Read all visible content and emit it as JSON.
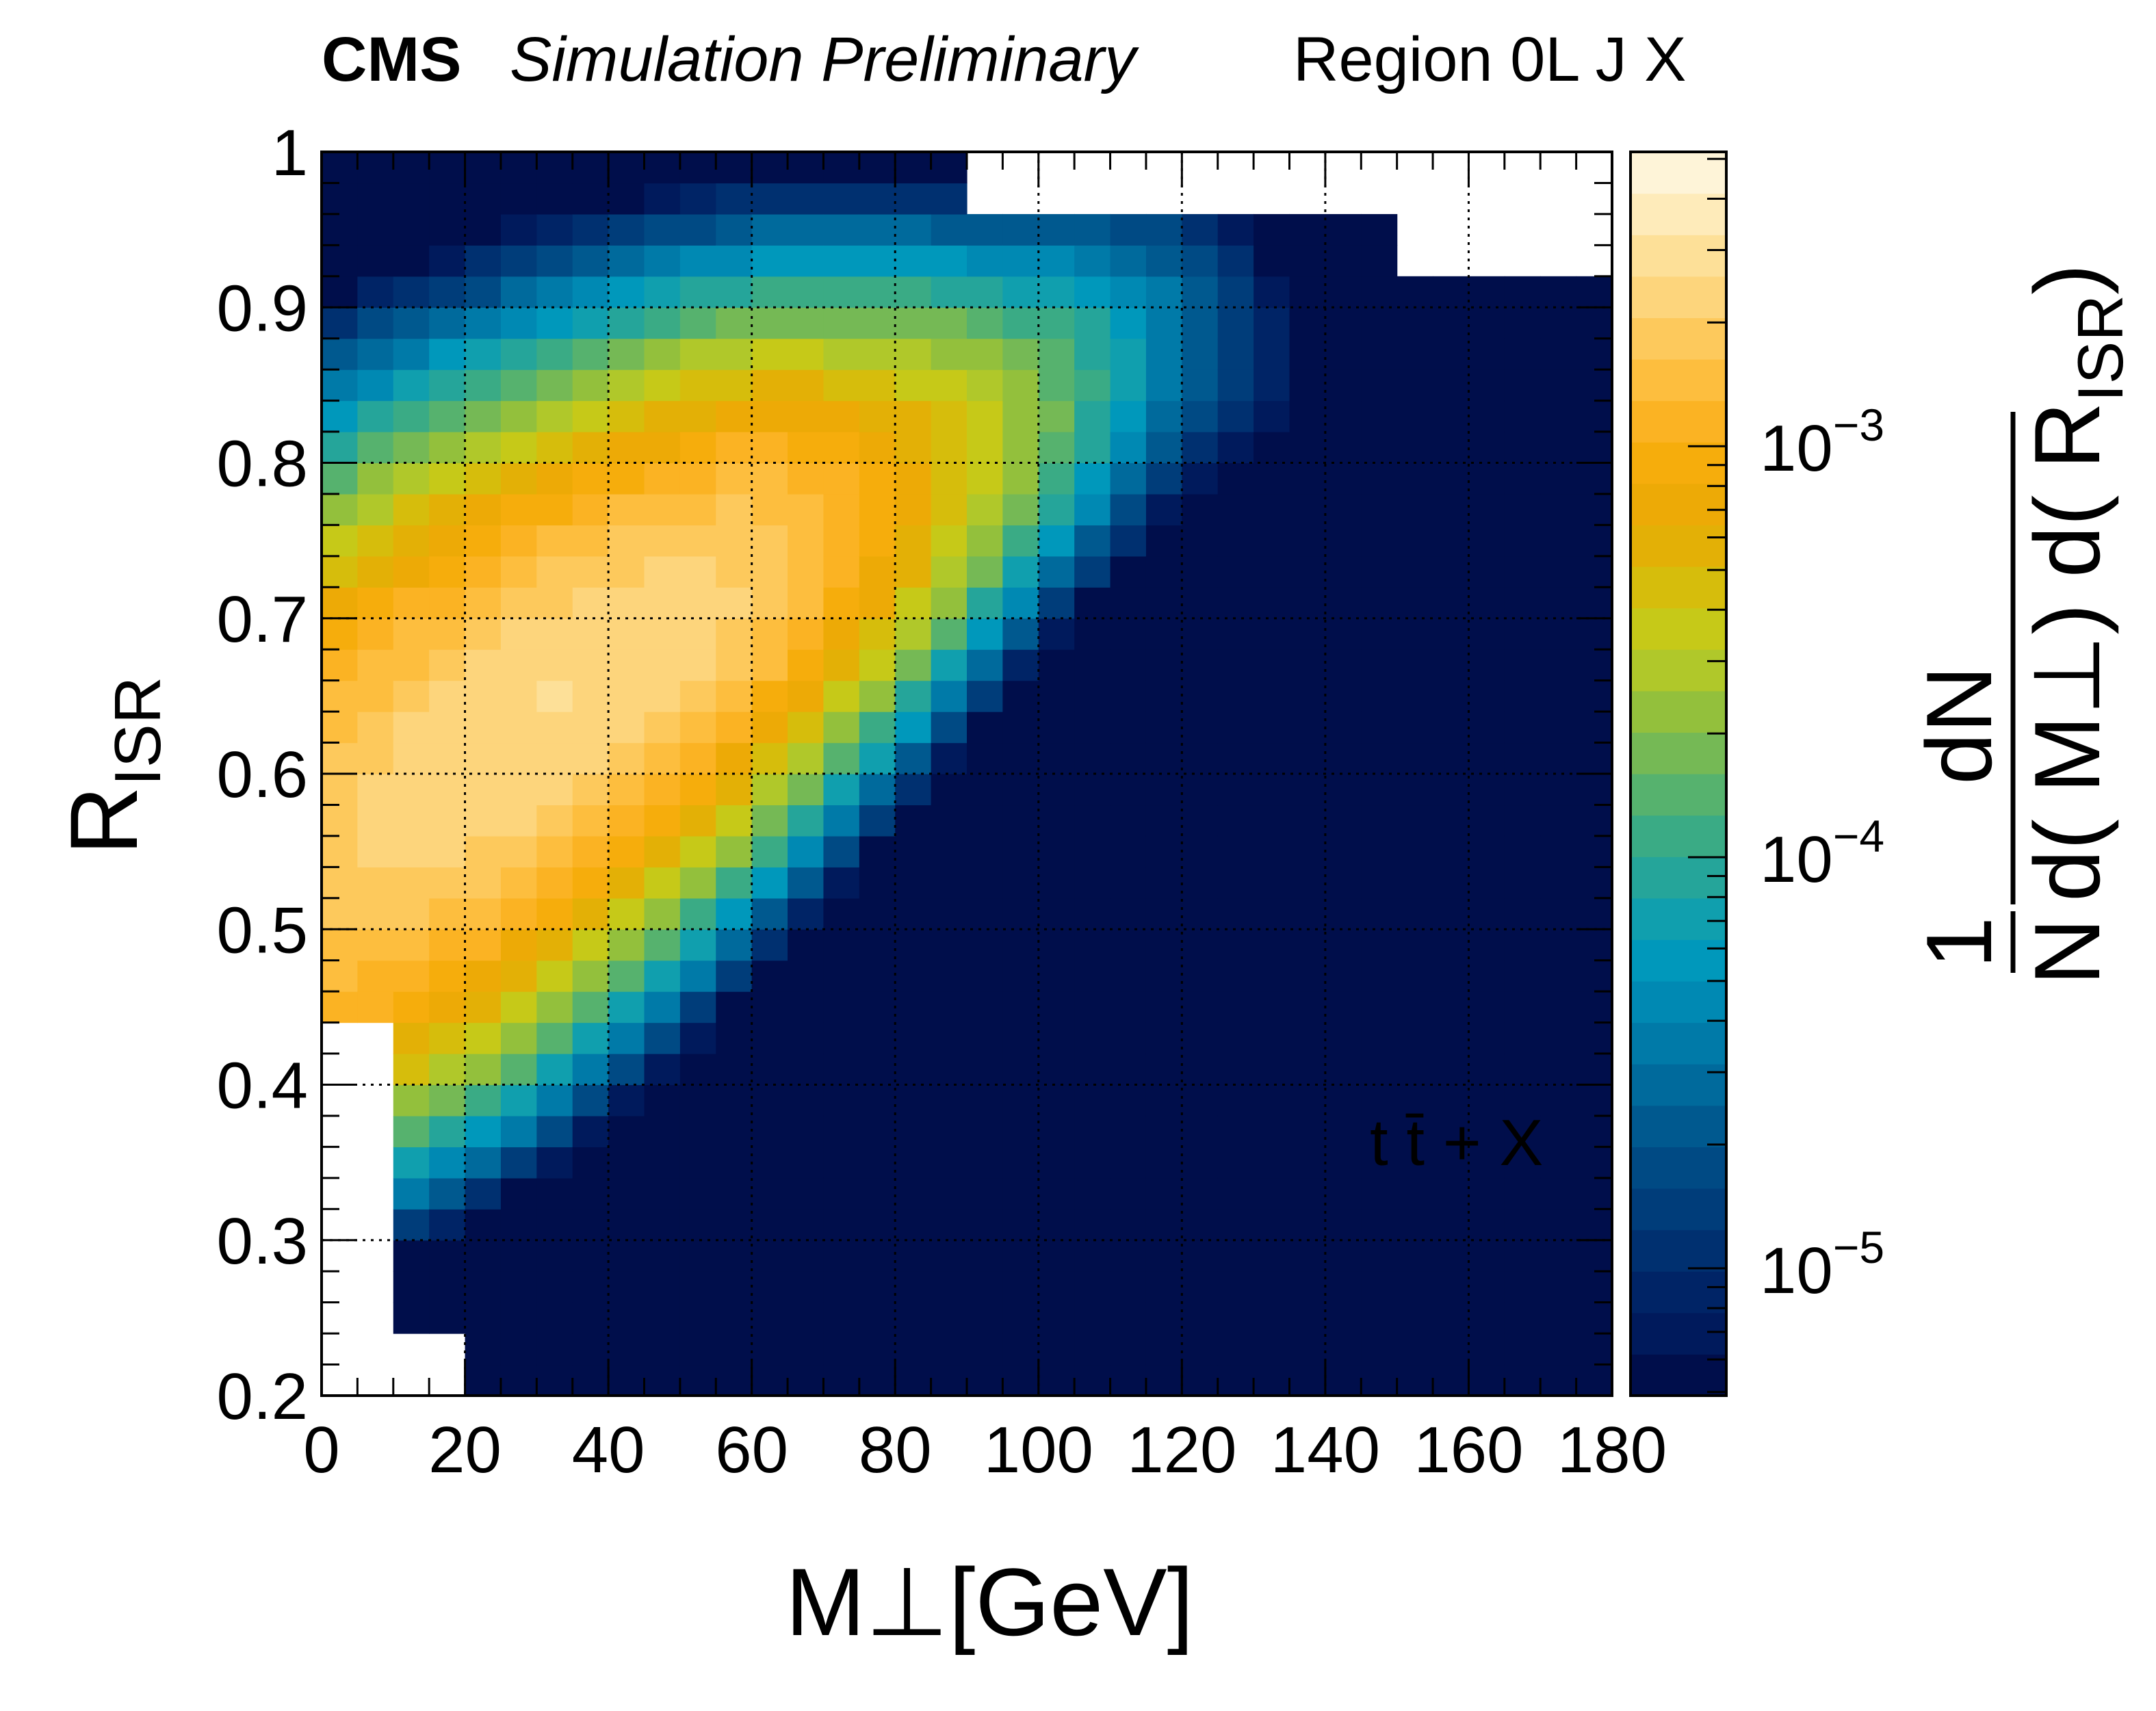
{
  "chart_data": {
    "type": "heatmap",
    "experiment": "CMS",
    "status": "Simulation Preliminary",
    "region": "Region 0L J X",
    "process_label": "t t̄ + X",
    "xlabel": "M⊥[GeV]",
    "ylabel": "R",
    "ylabel_sub": "ISR",
    "zlabel": "1/N dN/d(M⊥) d(R_ISR)",
    "zlabel_num": "1",
    "zlabel_den": "N",
    "zlabel_num2": "dN",
    "zlabel_den2": "d( M⊥) d( R",
    "zlabel_den2_sub": "ISR",
    "zlabel_den2_close": ")",
    "xlim": [
      0,
      180
    ],
    "ylim": [
      0.2,
      1.0
    ],
    "zscale": "log",
    "zlim": [
      4.9e-06,
      0.0052
    ],
    "xticks": [
      "0",
      "20",
      "40",
      "60",
      "80",
      "100",
      "120",
      "140",
      "160",
      "180"
    ],
    "yticks": [
      "0.2",
      "0.3",
      "0.4",
      "0.5",
      "0.6",
      "0.7",
      "0.8",
      "0.9",
      "1"
    ],
    "zticks": [
      {
        "base": "10",
        "exp": "−5",
        "value": 1e-05
      },
      {
        "base": "10",
        "exp": "−4",
        "value": 0.0001
      },
      {
        "base": "10",
        "exp": "−3",
        "value": 0.001
      }
    ],
    "palette": [
      "#000e4b",
      "#001a5c",
      "#002466",
      "#003070",
      "#003d7a",
      "#004a84",
      "#00598f",
      "#006a9c",
      "#007aa8",
      "#0089b3",
      "#0098bb",
      "#109fae",
      "#25a59a",
      "#3aab85",
      "#56b26e",
      "#75b955",
      "#93c03c",
      "#b0c82a",
      "#c6c918",
      "#d6bd0c",
      "#e3b006",
      "#edaa06",
      "#f6ad0c",
      "#fbb323",
      "#fdbe3e",
      "#fdc95c",
      "#fdd57c",
      "#fde098",
      "#feebba",
      "#fef4d8"
    ],
    "grid": true,
    "n_xbins": 36,
    "n_ybins": 40,
    "xbin_width_gev": 5,
    "ybin_width": 0.02
  }
}
